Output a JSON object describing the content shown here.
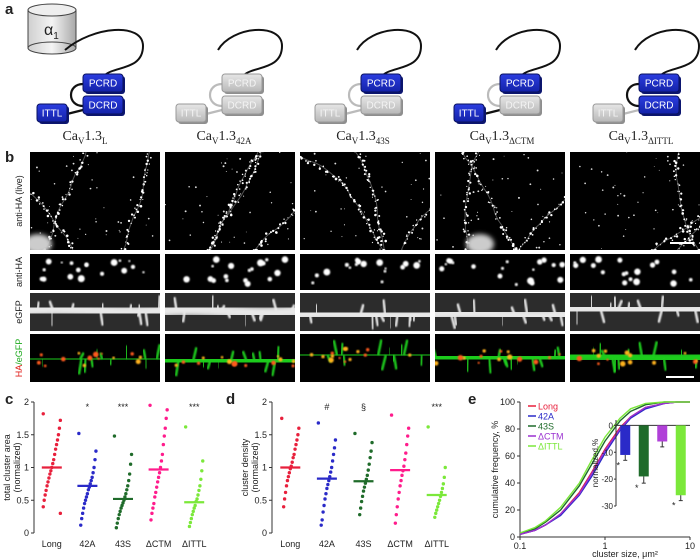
{
  "panels": [
    "a",
    "b",
    "c",
    "d",
    "e"
  ],
  "schematic": {
    "alpha": {
      "base": "α",
      "sub": "1"
    },
    "constructs": [
      {
        "label": {
          "base": "Ca",
          "sub1": "V",
          "mid": "1.3",
          "sub2": "L"
        },
        "domains": [
          {
            "name": "PCRD",
            "active": true
          },
          {
            "name": "DCRD",
            "active": true
          },
          {
            "name": "ITTL",
            "active": true
          }
        ]
      },
      {
        "label": {
          "base": "Ca",
          "sub1": "V",
          "mid": "1.3",
          "sub2": "42A"
        },
        "domains": [
          {
            "name": "PCRD",
            "active": false
          },
          {
            "name": "DCRD",
            "active": false
          },
          {
            "name": "ITTL",
            "active": false
          }
        ]
      },
      {
        "label": {
          "base": "Ca",
          "sub1": "V",
          "mid": "1.3",
          "sub2": "43S"
        },
        "domains": [
          {
            "name": "PCRD",
            "active": true
          },
          {
            "name": "DCRD",
            "active": false
          },
          {
            "name": "ITTL",
            "active": false
          }
        ]
      },
      {
        "label": {
          "base": "Ca",
          "sub1": "V",
          "mid": "1.3",
          "sub2": "ΔCTM"
        },
        "domains": [
          {
            "name": "PCRD",
            "active": true
          },
          {
            "name": "DCRD",
            "active": false
          },
          {
            "name": "ITTL",
            "active": true
          }
        ]
      },
      {
        "label": {
          "base": "Ca",
          "sub1": "V",
          "mid": "1.3",
          "sub2": "ΔITTL"
        },
        "domains": [
          {
            "name": "PCRD",
            "active": true
          },
          {
            "name": "DCRD",
            "active": true
          },
          {
            "name": "ITTL",
            "active": false
          }
        ]
      }
    ]
  },
  "images": {
    "row_labels": [
      "anti-HA (live)",
      "anti-HA",
      "eGFP"
    ],
    "merge_label": [
      "HA",
      "/eGFP"
    ]
  },
  "chart_data": [
    {
      "type": "strip",
      "ylabel": [
        "total cluster area",
        "(normalized)"
      ],
      "categories": [
        "Long",
        "42A",
        "43S",
        "ΔCTM",
        "ΔITTL"
      ],
      "colors": [
        "#e8203c",
        "#2a2ac8",
        "#1f6b2a",
        "#ff1c8c",
        "#7be83a"
      ],
      "values": [
        [
          1.82,
          1.72,
          1.6,
          1.5,
          1.42,
          1.35,
          1.28,
          1.2,
          1.12,
          1.06,
          1.0,
          0.95,
          0.9,
          0.84,
          0.78,
          0.72,
          0.65,
          0.58,
          0.5,
          0.4,
          0.3
        ],
        [
          1.52,
          1.25,
          1.12,
          1.0,
          0.92,
          0.85,
          0.8,
          0.75,
          0.7,
          0.66,
          0.6,
          0.55,
          0.5,
          0.45,
          0.38,
          0.3,
          0.22,
          0.12
        ],
        [
          1.48,
          1.2,
          1.05,
          0.9,
          0.8,
          0.72,
          0.66,
          0.6,
          0.55,
          0.5,
          0.46,
          0.42,
          0.38,
          0.33,
          0.28,
          0.22,
          0.15,
          0.08
        ],
        [
          1.95,
          1.88,
          1.75,
          1.6,
          1.48,
          1.35,
          1.2,
          1.1,
          1.0,
          0.92,
          0.85,
          0.78,
          0.7,
          0.62,
          0.55,
          0.45,
          0.38,
          0.3,
          0.2
        ],
        [
          1.62,
          1.1,
          0.95,
          0.82,
          0.72,
          0.65,
          0.58,
          0.52,
          0.48,
          0.42,
          0.38,
          0.33,
          0.28,
          0.22,
          0.16,
          0.1
        ]
      ],
      "means": [
        1.0,
        0.72,
        0.52,
        0.97,
        0.47
      ],
      "annotations": [
        null,
        "*",
        "***",
        null,
        "***"
      ],
      "ylim": [
        0,
        2
      ],
      "yticks": [
        0,
        0.5,
        1,
        1.5,
        2
      ]
    },
    {
      "type": "strip",
      "ylabel": [
        "cluster density",
        "(normalized)"
      ],
      "categories": [
        "Long",
        "42A",
        "43S",
        "ΔCTM",
        "ΔITTL"
      ],
      "colors": [
        "#e8203c",
        "#2a2ac8",
        "#1f6b2a",
        "#ff1c8c",
        "#7be83a"
      ],
      "values": [
        [
          1.75,
          1.6,
          1.5,
          1.42,
          1.35,
          1.28,
          1.2,
          1.15,
          1.08,
          1.02,
          0.98,
          0.92,
          0.86,
          0.8,
          0.72,
          0.62,
          0.52,
          0.4
        ],
        [
          1.68,
          1.42,
          1.3,
          1.2,
          1.1,
          1.0,
          0.93,
          0.86,
          0.8,
          0.74,
          0.68,
          0.6,
          0.52,
          0.42,
          0.32,
          0.2,
          0.12
        ],
        [
          1.52,
          1.38,
          1.25,
          1.15,
          1.05,
          0.96,
          0.88,
          0.82,
          0.76,
          0.7,
          0.64,
          0.56,
          0.48,
          0.38,
          0.28
        ],
        [
          1.8,
          1.6,
          1.48,
          1.35,
          1.22,
          1.12,
          1.02,
          0.95,
          0.88,
          0.8,
          0.72,
          0.62,
          0.52,
          0.4,
          0.28,
          0.15
        ],
        [
          1.62,
          1.0,
          0.85,
          0.75,
          0.68,
          0.62,
          0.56,
          0.5,
          0.45,
          0.4,
          0.35,
          0.3,
          0.24
        ]
      ],
      "means": [
        1.0,
        0.83,
        0.79,
        0.96,
        0.58
      ],
      "annotations": [
        null,
        "#",
        "§",
        null,
        "***"
      ],
      "ylim": [
        0,
        2
      ],
      "yticks": [
        0,
        0.5,
        1,
        1.5,
        2
      ]
    },
    {
      "type": "line",
      "xlabel": "cluster size, μm²",
      "ylabel": "cumulative frequency, %",
      "xscale": "log",
      "xlim": [
        0.1,
        10
      ],
      "xticks": [
        0.1,
        1,
        10
      ],
      "ylim": [
        0,
        100
      ],
      "yticks": [
        0,
        20,
        40,
        60,
        80,
        100
      ],
      "legend": "upper-left",
      "x": [
        0.1,
        0.15,
        0.2,
        0.3,
        0.5,
        0.7,
        1,
        1.5,
        2,
        3,
        5,
        7,
        10
      ],
      "series": [
        {
          "name": "Long",
          "color": "#e8203c",
          "values": [
            2,
            5,
            9,
            17,
            33,
            48,
            65,
            81,
            89,
            96,
            99,
            100,
            100
          ]
        },
        {
          "name": "42A",
          "color": "#2a2ac8",
          "values": [
            2,
            5,
            9,
            16,
            31,
            45,
            62,
            79,
            88,
            95,
            99,
            100,
            100
          ]
        },
        {
          "name": "43S",
          "color": "#1f6b2a",
          "values": [
            3,
            6,
            11,
            20,
            38,
            54,
            71,
            86,
            93,
            98,
            100,
            100,
            100
          ]
        },
        {
          "name": "ΔCTM",
          "color": "#9a30d0",
          "values": [
            2,
            5,
            9,
            17,
            32,
            47,
            64,
            80,
            89,
            96,
            99,
            100,
            100
          ]
        },
        {
          "name": "ΔITTL",
          "color": "#7be83a",
          "values": [
            3,
            7,
            12,
            22,
            40,
            57,
            74,
            88,
            95,
            99,
            100,
            100,
            100
          ]
        }
      ]
    },
    {
      "type": "bar",
      "ylabel": "normalized,%",
      "categories": [
        null,
        null,
        null,
        null
      ],
      "values": [
        -11,
        -19,
        -6,
        -26
      ],
      "errors": [
        2,
        2.5,
        2,
        2
      ],
      "colors": [
        "#2a2ac8",
        "#1f6b2a",
        "#b040d8",
        "#7be83a"
      ],
      "annotations": [
        "*",
        "*",
        null,
        "*"
      ],
      "ylim": [
        -30,
        2
      ],
      "yticks": [
        0,
        -10,
        -20,
        -30
      ]
    }
  ]
}
